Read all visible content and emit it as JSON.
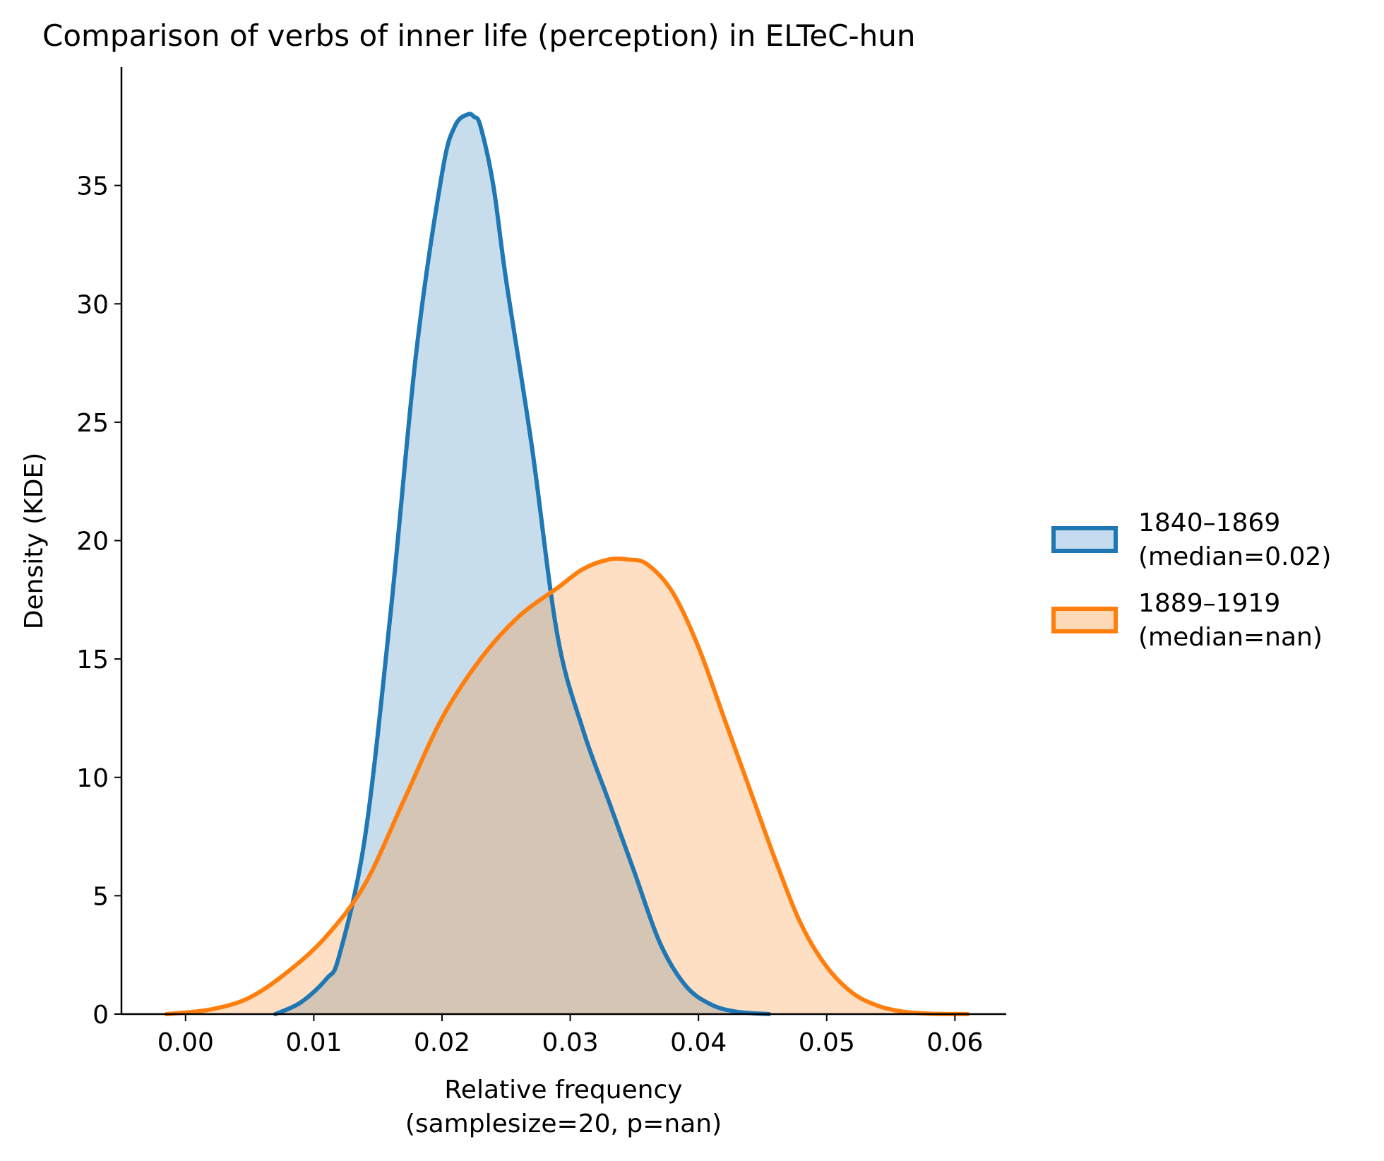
{
  "chart_data": {
    "type": "area",
    "title": "Comparison of verbs of inner life (perception) in ELTeC-hun",
    "xlabel_line1": "Relative frequency",
    "xlabel_line2": "(samplesize=20, p=nan)",
    "ylabel": "Density (KDE)",
    "xlim": [
      -0.005,
      0.064
    ],
    "ylim": [
      0,
      40
    ],
    "xticks": [
      0.0,
      0.01,
      0.02,
      0.03,
      0.04,
      0.05,
      0.06
    ],
    "xtick_labels": [
      "0.00",
      "0.01",
      "0.02",
      "0.03",
      "0.04",
      "0.05",
      "0.06"
    ],
    "yticks": [
      0,
      5,
      10,
      15,
      20,
      25,
      30,
      35
    ],
    "ytick_labels": [
      "0",
      "5",
      "10",
      "15",
      "20",
      "25",
      "30",
      "35"
    ],
    "grid": false,
    "legend_position": "right",
    "series": [
      {
        "name_line1": "1840–1869",
        "name_line2": "(median=0.02)",
        "color": "#1f77b4",
        "fill_color": "#c6dbed",
        "x": [
          0.007,
          0.009,
          0.011,
          0.012,
          0.014,
          0.016,
          0.018,
          0.02,
          0.021,
          0.022,
          0.0225,
          0.023,
          0.024,
          0.025,
          0.027,
          0.029,
          0.031,
          0.033,
          0.035,
          0.037,
          0.039,
          0.041,
          0.043,
          0.0455
        ],
        "y": [
          0,
          0.5,
          1.5,
          2.5,
          7.5,
          17,
          28,
          35.5,
          37.5,
          38,
          37.9,
          37.5,
          35,
          31,
          24,
          16,
          12,
          9,
          6,
          3,
          1.2,
          0.4,
          0.1,
          0
        ]
      },
      {
        "name_line1": "1889–1919",
        "name_line2": "(median=nan)",
        "color": "#ff7f0e",
        "fill_color": "#fed9b7",
        "x": [
          -0.0015,
          0.002,
          0.005,
          0.008,
          0.011,
          0.014,
          0.017,
          0.02,
          0.023,
          0.026,
          0.029,
          0.031,
          0.033,
          0.0345,
          0.036,
          0.038,
          0.04,
          0.042,
          0.044,
          0.046,
          0.048,
          0.05,
          0.052,
          0.054,
          0.056,
          0.058,
          0.061
        ],
        "y": [
          0,
          0.2,
          0.7,
          1.8,
          3.3,
          5.5,
          9,
          12.5,
          15,
          16.8,
          18,
          18.8,
          19.2,
          19.2,
          19,
          17.8,
          15.5,
          12.5,
          9.5,
          6.5,
          3.8,
          2,
          0.9,
          0.35,
          0.1,
          0.02,
          0
        ]
      }
    ]
  }
}
